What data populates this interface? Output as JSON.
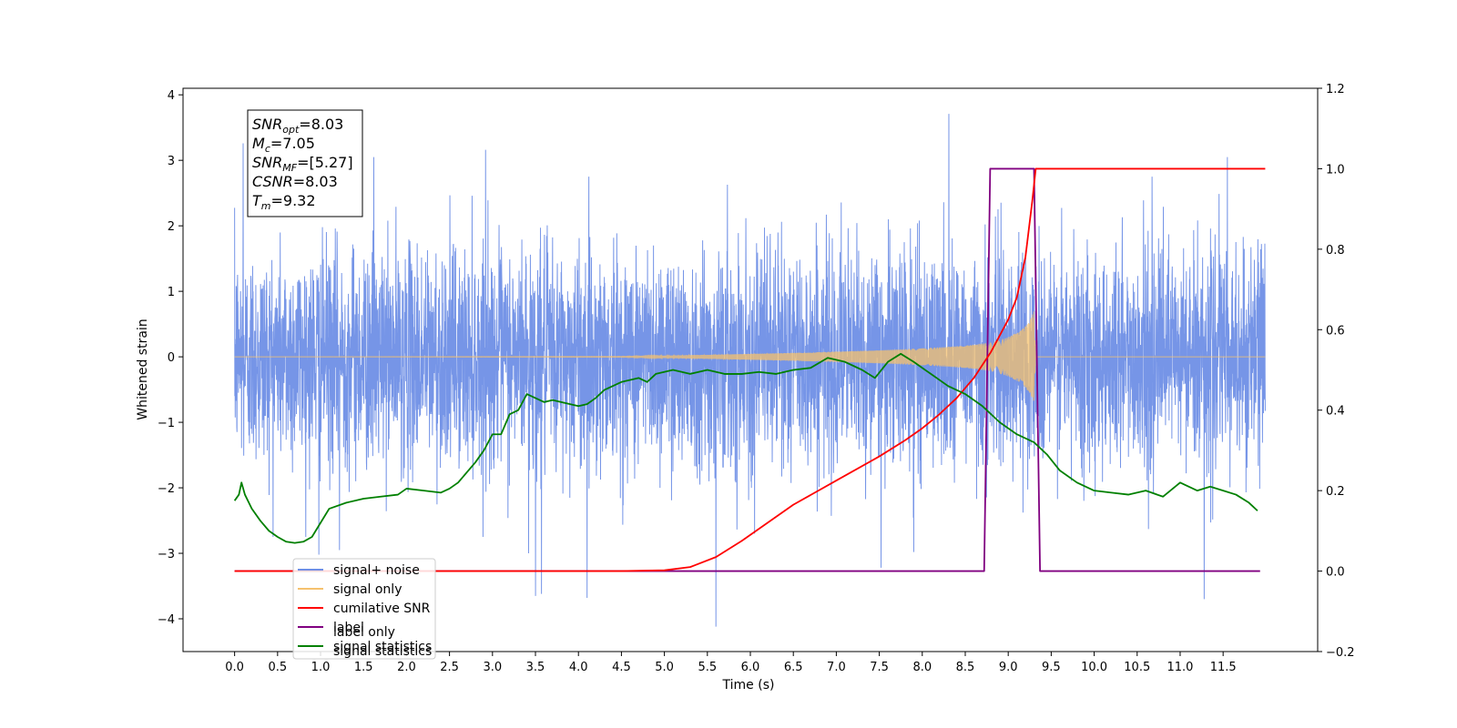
{
  "chart_data": {
    "type": "line",
    "xlabel": "Time (s)",
    "ylabel_left": "Whitened strain",
    "ylabel_right": "",
    "xlim": [
      -0.6,
      12.6
    ],
    "ylim_left": [
      -4.5,
      4.1
    ],
    "ylim_right": [
      -0.2,
      1.2
    ],
    "xticks": [
      0.0,
      0.5,
      1.0,
      1.5,
      2.0,
      2.5,
      3.0,
      3.5,
      4.0,
      4.5,
      5.0,
      5.5,
      6.0,
      6.5,
      7.0,
      7.5,
      8.0,
      8.5,
      9.0,
      9.5,
      10.0,
      10.5,
      11.0,
      11.5
    ],
    "xtick_labels": [
      "0.0",
      "0.5",
      "1.0",
      "1.5",
      "2.0",
      "2.5",
      "3.0",
      "3.5",
      "4.0",
      "4.5",
      "5.0",
      "5.5",
      "6.0",
      "6.5",
      "7.0",
      "7.5",
      "8.0",
      "8.5",
      "9.0",
      "9.5",
      "10.0",
      "10.5",
      "11.0",
      "11.5"
    ],
    "yticks_left": [
      -4,
      -3,
      -2,
      -1,
      0,
      1,
      2,
      3,
      4
    ],
    "ytick_labels_left": [
      "−4",
      "−3",
      "−2",
      "−1",
      "0",
      "1",
      "2",
      "3",
      "4"
    ],
    "yticks_right": [
      -0.2,
      0.0,
      0.2,
      0.4,
      0.6,
      0.8,
      1.0,
      1.2
    ],
    "ytick_labels_right": [
      "−0.2",
      "0.0",
      "0.2",
      "0.4",
      "0.6",
      "0.8",
      "1.0",
      "1.2"
    ],
    "grid": false,
    "legend_placement": "lower-left",
    "info_box": [
      {
        "main": "SNR",
        "sub": "opt",
        "rest": "=8.03"
      },
      {
        "main": "M",
        "sub": "c",
        "rest": "=7.05"
      },
      {
        "main": "SNR",
        "sub": "MF",
        "rest": "=[5.27]"
      },
      {
        "main": "CSNR",
        "sub": "",
        "rest": "=8.03"
      },
      {
        "main": "T",
        "sub": "m",
        "rest": "=9.32"
      }
    ],
    "legend": [
      {
        "label": "signal+ noise",
        "color": "#6f8fe6",
        "series": "noise"
      },
      {
        "label": "signal only",
        "color": "#f5c16e",
        "series": "signal"
      },
      {
        "label": "cumilative SNR",
        "color": "#ff0000",
        "series": "csnr"
      },
      {
        "label": "label",
        "color": "#800080",
        "series": "label"
      },
      {
        "label": "signal statistics",
        "color": "#008000",
        "series": "stats"
      }
    ],
    "ghost_legend_text": [
      {
        "text": "label only",
        "color": "#c8a8c8"
      },
      {
        "text": "signal statistics",
        "color": "#9ec89e"
      }
    ],
    "series": [
      {
        "name": "signal+ noise",
        "axis": "left",
        "color": "#6f8fe6",
        "t_start": 0.0,
        "t_end": 11.99,
        "std": 0.82,
        "spikes": [
          [
            0.1,
            3.26
          ],
          [
            1.62,
            3.05
          ],
          [
            2.92,
            3.16
          ],
          [
            8.31,
            3.71
          ],
          [
            11.55,
            3.05
          ],
          [
            3.5,
            -3.65
          ],
          [
            3.57,
            -3.62
          ],
          [
            4.1,
            -3.68
          ],
          [
            5.6,
            -4.12
          ],
          [
            7.52,
            -3.22
          ],
          [
            11.28,
            -3.7
          ],
          [
            0.98,
            -3.02
          ],
          [
            1.22,
            -2.95
          ],
          [
            3.42,
            -3.0
          ],
          [
            6.05,
            -2.7
          ],
          [
            7.9,
            -2.98
          ]
        ]
      },
      {
        "name": "signal only",
        "axis": "left",
        "color": "#f5c16e",
        "t_start": 0.0,
        "t_end": 11.99,
        "merger_time": 9.32,
        "envelope": [
          [
            0.0,
            0.0
          ],
          [
            4.5,
            0.005
          ],
          [
            5.5,
            0.03
          ],
          [
            6.5,
            0.06
          ],
          [
            7.5,
            0.1
          ],
          [
            8.0,
            0.13
          ],
          [
            8.5,
            0.17
          ],
          [
            8.8,
            0.22
          ],
          [
            9.0,
            0.3
          ],
          [
            9.15,
            0.4
          ],
          [
            9.25,
            0.55
          ],
          [
            9.3,
            0.7
          ],
          [
            9.32,
            0.0
          ],
          [
            11.99,
            0.0
          ]
        ]
      },
      {
        "name": "cumilative SNR",
        "axis": "right",
        "color": "#ff0000",
        "points": [
          [
            0.0,
            0.0
          ],
          [
            4.5,
            0.0
          ],
          [
            5.0,
            0.002
          ],
          [
            5.3,
            0.01
          ],
          [
            5.6,
            0.035
          ],
          [
            5.9,
            0.075
          ],
          [
            6.2,
            0.12
          ],
          [
            6.5,
            0.165
          ],
          [
            7.0,
            0.225
          ],
          [
            7.5,
            0.285
          ],
          [
            7.8,
            0.325
          ],
          [
            8.0,
            0.355
          ],
          [
            8.2,
            0.39
          ],
          [
            8.4,
            0.43
          ],
          [
            8.6,
            0.48
          ],
          [
            8.8,
            0.545
          ],
          [
            9.0,
            0.625
          ],
          [
            9.1,
            0.68
          ],
          [
            9.2,
            0.78
          ],
          [
            9.28,
            0.92
          ],
          [
            9.32,
            1.0
          ],
          [
            11.99,
            1.0
          ]
        ]
      },
      {
        "name": "label",
        "axis": "right",
        "color": "#800080",
        "points": [
          [
            0.0,
            0.0
          ],
          [
            8.72,
            0.0
          ],
          [
            8.79,
            1.0
          ],
          [
            9.3,
            1.0
          ],
          [
            9.37,
            0.0
          ],
          [
            11.93,
            0.0
          ]
        ]
      },
      {
        "name": "signal statistics",
        "axis": "right",
        "color": "#008000",
        "points": [
          [
            0.0,
            0.175
          ],
          [
            0.05,
            0.19
          ],
          [
            0.08,
            0.22
          ],
          [
            0.12,
            0.19
          ],
          [
            0.2,
            0.155
          ],
          [
            0.3,
            0.125
          ],
          [
            0.4,
            0.1
          ],
          [
            0.5,
            0.085
          ],
          [
            0.6,
            0.073
          ],
          [
            0.7,
            0.07
          ],
          [
            0.8,
            0.073
          ],
          [
            0.9,
            0.085
          ],
          [
            1.0,
            0.12
          ],
          [
            1.1,
            0.155
          ],
          [
            1.3,
            0.17
          ],
          [
            1.5,
            0.18
          ],
          [
            1.7,
            0.185
          ],
          [
            1.9,
            0.19
          ],
          [
            2.0,
            0.205
          ],
          [
            2.2,
            0.2
          ],
          [
            2.4,
            0.195
          ],
          [
            2.5,
            0.205
          ],
          [
            2.6,
            0.22
          ],
          [
            2.8,
            0.27
          ],
          [
            2.9,
            0.3
          ],
          [
            3.0,
            0.34
          ],
          [
            3.1,
            0.34
          ],
          [
            3.2,
            0.39
          ],
          [
            3.3,
            0.4
          ],
          [
            3.4,
            0.44
          ],
          [
            3.5,
            0.43
          ],
          [
            3.6,
            0.42
          ],
          [
            3.7,
            0.425
          ],
          [
            3.8,
            0.42
          ],
          [
            4.0,
            0.41
          ],
          [
            4.1,
            0.415
          ],
          [
            4.2,
            0.43
          ],
          [
            4.3,
            0.45
          ],
          [
            4.5,
            0.47
          ],
          [
            4.7,
            0.48
          ],
          [
            4.8,
            0.47
          ],
          [
            4.9,
            0.49
          ],
          [
            5.1,
            0.5
          ],
          [
            5.3,
            0.49
          ],
          [
            5.5,
            0.5
          ],
          [
            5.7,
            0.49
          ],
          [
            5.9,
            0.49
          ],
          [
            6.1,
            0.495
          ],
          [
            6.3,
            0.49
          ],
          [
            6.5,
            0.5
          ],
          [
            6.7,
            0.505
          ],
          [
            6.9,
            0.53
          ],
          [
            7.1,
            0.52
          ],
          [
            7.3,
            0.5
          ],
          [
            7.45,
            0.48
          ],
          [
            7.6,
            0.52
          ],
          [
            7.75,
            0.54
          ],
          [
            7.9,
            0.52
          ],
          [
            8.1,
            0.49
          ],
          [
            8.3,
            0.46
          ],
          [
            8.5,
            0.44
          ],
          [
            8.7,
            0.41
          ],
          [
            8.9,
            0.37
          ],
          [
            9.1,
            0.34
          ],
          [
            9.3,
            0.32
          ],
          [
            9.45,
            0.29
          ],
          [
            9.6,
            0.25
          ],
          [
            9.8,
            0.22
          ],
          [
            10.0,
            0.2
          ],
          [
            10.2,
            0.195
          ],
          [
            10.4,
            0.19
          ],
          [
            10.6,
            0.2
          ],
          [
            10.8,
            0.185
          ],
          [
            11.0,
            0.22
          ],
          [
            11.2,
            0.2
          ],
          [
            11.35,
            0.21
          ],
          [
            11.5,
            0.2
          ],
          [
            11.65,
            0.19
          ],
          [
            11.8,
            0.17
          ],
          [
            11.9,
            0.15
          ]
        ]
      }
    ]
  }
}
